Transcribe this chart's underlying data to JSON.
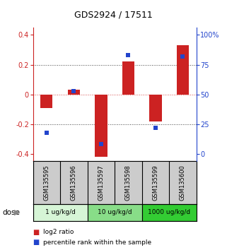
{
  "title": "GDS2924 / 17511",
  "samples": [
    "GSM135595",
    "GSM135596",
    "GSM135597",
    "GSM135598",
    "GSM135599",
    "GSM135600"
  ],
  "log2_ratio": [
    -0.09,
    0.03,
    -0.42,
    0.22,
    -0.18,
    0.33
  ],
  "percentile_rank": [
    18,
    53,
    8,
    83,
    22,
    82
  ],
  "doses": [
    {
      "label": "1 ug/kg/d",
      "samples": [
        0,
        1
      ],
      "color": "#d6f5d6"
    },
    {
      "label": "10 ug/kg/d",
      "samples": [
        2,
        3
      ],
      "color": "#88dd88"
    },
    {
      "label": "1000 ug/kg/d",
      "samples": [
        4,
        5
      ],
      "color": "#33cc33"
    }
  ],
  "ylim_left": [
    -0.45,
    0.45
  ],
  "yticks_left": [
    -0.4,
    -0.2,
    0.0,
    0.2,
    0.4
  ],
  "yticks_right": [
    0,
    25,
    50,
    75,
    100
  ],
  "bar_color_red": "#cc2222",
  "dot_color_blue": "#2244cc",
  "label_bg": "#cccccc",
  "background_color": "#ffffff",
  "dose_label": "dose",
  "legend_log2": "log2 ratio",
  "legend_pct": "percentile rank within the sample"
}
